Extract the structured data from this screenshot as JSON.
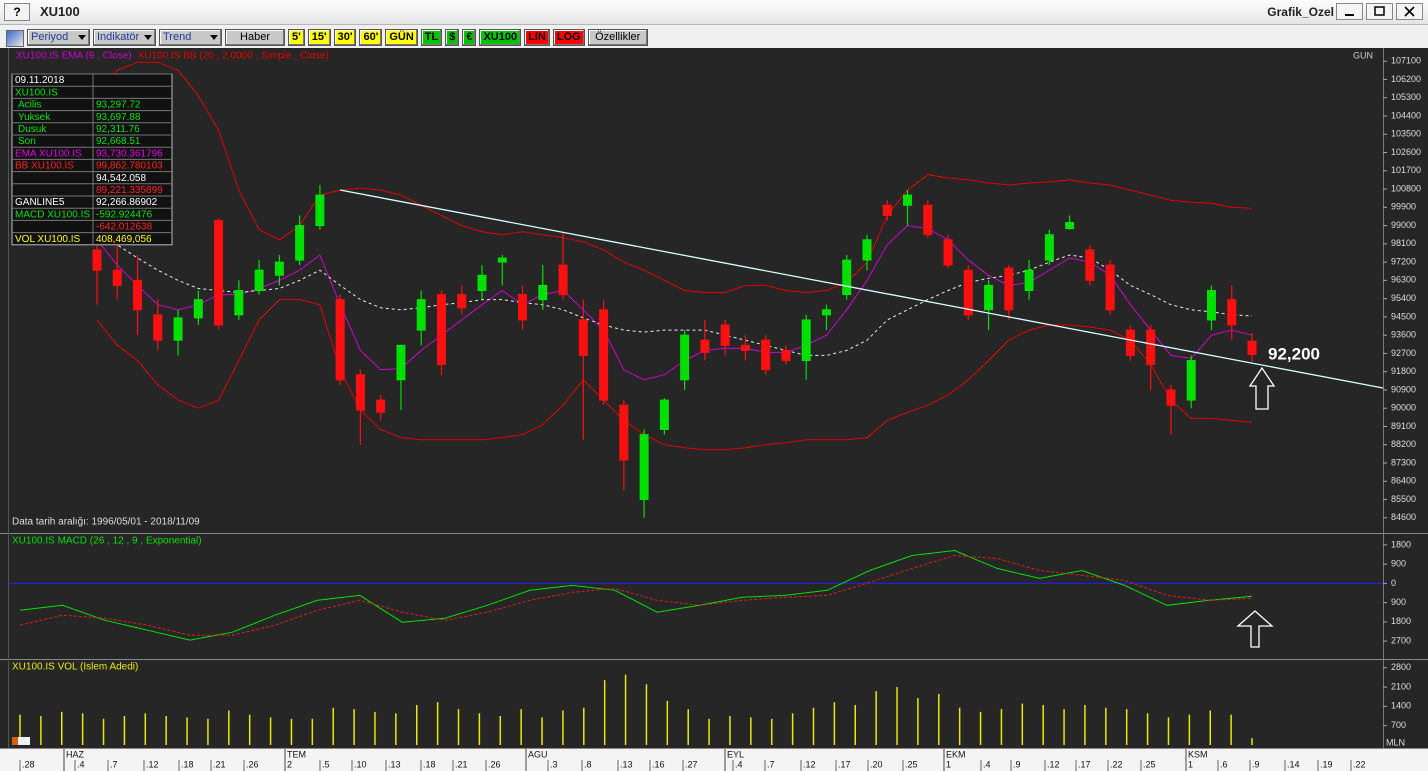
{
  "window": {
    "help": "?",
    "title": "XU100",
    "name": "Grafik_Ozel"
  },
  "toolbar": [
    {
      "label": "Periyod",
      "bg": "#c8c8c8",
      "menu": true
    },
    {
      "label": "Indikatör",
      "bg": "#c8c8c8",
      "menu": true
    },
    {
      "label": "Trend",
      "bg": "#c8c8c8",
      "menu": true
    },
    {
      "label": "Haber",
      "bg": "#c8c8c8",
      "menu": false
    },
    {
      "label": "5'",
      "bg": "#ffff00",
      "menu": false
    },
    {
      "label": "15'",
      "bg": "#ffff00",
      "menu": false
    },
    {
      "label": "30'",
      "bg": "#ffff00",
      "menu": false
    },
    {
      "label": "60'",
      "bg": "#ffff00",
      "menu": false
    },
    {
      "label": "GÜN",
      "bg": "#ffff00",
      "menu": false
    },
    {
      "label": "TL",
      "bg": "#00c400",
      "menu": false
    },
    {
      "label": "$",
      "bg": "#00c400",
      "menu": false
    },
    {
      "label": "€",
      "bg": "#00c400",
      "menu": false
    },
    {
      "label": "XU100",
      "bg": "#00c400",
      "menu": false
    },
    {
      "label": "LIN",
      "bg": "#ff0000",
      "menu": false
    },
    {
      "label": "LOG",
      "bg": "#ff0000",
      "menu": false
    },
    {
      "label": "Özellikler",
      "bg": "#c8c8c8",
      "menu": false
    }
  ],
  "chart_data": [
    {
      "type": "candlestick",
      "legend": [
        {
          "text": "XU100.IS EMA (9 , Close)",
          "color": "#d000d0"
        },
        {
          "text": "XU100.IS BB (20 , 2.0000 , Simple , Close)",
          "color": "#e00000"
        }
      ],
      "period": "GUN",
      "date_range": "Data tarih aralığı: 1996/05/01 - 2018/11/09",
      "annotation": "92,200",
      "ylim": [
        83900,
        107750
      ],
      "yticks": [
        107100,
        106200,
        105300,
        104400,
        103500,
        102600,
        101700,
        100800,
        99900,
        99000,
        98100,
        97200,
        96300,
        95400,
        94500,
        93600,
        92700,
        91800,
        90900,
        90000,
        89100,
        88200,
        87300,
        86400,
        85500,
        84600
      ],
      "up_color": "#00e000",
      "down_color": "#ff1010",
      "open": [
        97800,
        96800,
        96300,
        94600,
        93350,
        94450,
        99250,
        94600,
        95800,
        96550,
        97300,
        99000,
        95350,
        91650,
        90400,
        91400,
        93850,
        95600,
        95600,
        95800,
        97200,
        95600,
        95350,
        97050,
        94350,
        94850,
        90150,
        85500,
        88950,
        91400,
        93350,
        94100,
        93100,
        93350,
        92850,
        92350,
        94600,
        95600,
        97300,
        100000,
        100000,
        100000,
        98300,
        96800,
        94850,
        96900,
        95800,
        97300,
        98850,
        97800,
        97050,
        93850,
        93850,
        90900,
        90400,
        94350,
        95350,
        93300
      ],
      "high": [
        98800,
        98800,
        97550,
        95350,
        94850,
        95800,
        99350,
        96300,
        97300,
        97550,
        99500,
        101000,
        95600,
        91900,
        90650,
        93100,
        95800,
        95800,
        96050,
        97050,
        97550,
        96050,
        97050,
        98700,
        95350,
        95350,
        90400,
        88950,
        90500,
        93850,
        94350,
        94350,
        93600,
        93600,
        93100,
        94600,
        95100,
        97550,
        98550,
        100250,
        100750,
        100250,
        98550,
        97050,
        96300,
        97050,
        97300,
        98800,
        99500,
        98050,
        97300,
        94100,
        94100,
        91150,
        92600,
        96050,
        96050,
        93700
      ],
      "low": [
        95100,
        95350,
        93600,
        92850,
        92600,
        94100,
        93850,
        94350,
        95600,
        96050,
        97050,
        98800,
        91150,
        88200,
        89400,
        89900,
        93100,
        91650,
        94600,
        95350,
        96050,
        93850,
        94850,
        95350,
        88450,
        90150,
        85950,
        84600,
        88700,
        90900,
        92350,
        92600,
        92350,
        91650,
        92150,
        91400,
        93850,
        95350,
        96800,
        99250,
        99000,
        98400,
        96900,
        94350,
        93850,
        94350,
        95350,
        97050,
        98800,
        96050,
        94600,
        92350,
        90900,
        88700,
        90000,
        93850,
        93350,
        92300
      ],
      "close": [
        96800,
        96050,
        94850,
        93350,
        94450,
        95350,
        94100,
        95800,
        96800,
        97200,
        99000,
        100500,
        91400,
        89900,
        89800,
        93100,
        95350,
        92150,
        94950,
        96550,
        97400,
        94350,
        96050,
        95600,
        92600,
        90400,
        87450,
        88700,
        90400,
        93600,
        92750,
        93100,
        92850,
        91900,
        92350,
        94350,
        94850,
        97300,
        98300,
        99500,
        100500,
        98550,
        97050,
        94600,
        96050,
        94850,
        96800,
        98550,
        99150,
        96300,
        94850,
        92600,
        92150,
        90150,
        92350,
        95800,
        94100,
        92650
      ],
      "overlays": [
        {
          "color": "#e00000",
          "dashed": false,
          "values": [
            105650,
            106650,
            107050,
            107050,
            106650,
            105400,
            103700,
            100750,
            98800,
            98300,
            99000,
            100500,
            100750,
            100850,
            100750,
            100500,
            100000,
            99500,
            99000,
            98700,
            98550,
            98700,
            98550,
            98400,
            98200,
            97800,
            97200,
            96800,
            96300,
            95800,
            95700,
            95700,
            96050,
            96050,
            95800,
            95700,
            95800,
            96200,
            97200,
            99500,
            100750,
            101500,
            101350,
            101250,
            101100,
            101000,
            101100,
            101150,
            101250,
            101100,
            101000,
            100750,
            100500,
            100250,
            100150,
            100100,
            99900,
            99850
          ]
        },
        {
          "color": "#e00000",
          "dashed": false,
          "values": [
            94350,
            93100,
            92350,
            91150,
            90400,
            90000,
            90400,
            92350,
            94350,
            95350,
            95350,
            95100,
            91900,
            89900,
            88950,
            88550,
            88450,
            88450,
            88450,
            88450,
            88550,
            88700,
            89200,
            90150,
            91400,
            90400,
            89400,
            88700,
            88200,
            88050,
            87950,
            87950,
            88050,
            88200,
            88300,
            88450,
            88450,
            88450,
            88550,
            89400,
            89800,
            90150,
            90650,
            91400,
            92350,
            93350,
            93850,
            94100,
            94100,
            94000,
            93850,
            93350,
            92150,
            90400,
            89500,
            89500,
            89400,
            89300
          ]
        },
        {
          "color": "#d000d0",
          "dashed": false,
          "values": [
            98300,
            97050,
            96050,
            95100,
            94850,
            95100,
            95600,
            95600,
            95900,
            96300,
            96800,
            97550,
            95100,
            92850,
            91900,
            91950,
            92850,
            93600,
            94350,
            95100,
            95800,
            95100,
            95600,
            95800,
            94850,
            93850,
            91900,
            91400,
            91650,
            92350,
            92850,
            92950,
            92950,
            92750,
            92750,
            93100,
            93600,
            94850,
            96300,
            98050,
            99000,
            98850,
            98300,
            97300,
            96550,
            96050,
            96200,
            96800,
            97400,
            97200,
            96550,
            95100,
            93850,
            92600,
            92450,
            93600,
            93850,
            93600
          ]
        },
        {
          "color": "#e8f0e8",
          "dashed": true,
          "values": [
            98550,
            98050,
            97400,
            96800,
            96300,
            95900,
            95800,
            95700,
            95800,
            95900,
            96300,
            96800,
            96050,
            95350,
            94950,
            94850,
            94950,
            95100,
            95200,
            95350,
            95350,
            95200,
            95100,
            94850,
            94450,
            94100,
            93850,
            93750,
            93850,
            93850,
            93850,
            93600,
            93350,
            93100,
            92850,
            92600,
            92600,
            92850,
            93350,
            94350,
            94850,
            95350,
            95800,
            96200,
            96400,
            96550,
            96800,
            97200,
            97550,
            97400,
            96800,
            96050,
            95600,
            95100,
            94850,
            94750,
            94600,
            94550
          ]
        }
      ],
      "info": [
        {
          "label": "09.11.2018",
          "color": "#ffffff"
        },
        {
          "label": "XU100.IS",
          "color": "#00e000"
        },
        {
          "label": "Acilis",
          "value": "93,297.72",
          "color": "#00e000"
        },
        {
          "label": "Yuksek",
          "value": "93,697.88",
          "color": "#00e000"
        },
        {
          "label": "Dusuk",
          "value": "92,311.76",
          "color": "#00e000"
        },
        {
          "label": "Son",
          "value": "92,668.51",
          "color": "#00e000"
        },
        {
          "label": "EMA XU100.IS",
          "value": "93,730.361796",
          "color": "#e000e0"
        },
        {
          "label": "BB XU100.IS",
          "value": "99,862.780103",
          "color": "#ff2020"
        },
        {
          "value": "94,542.058",
          "color": "#ffffff"
        },
        {
          "value": "89,221.335899",
          "color": "#ff2020"
        },
        {
          "label": "GANLINE5",
          "value": "92,266.86902",
          "color": "#ffffff"
        },
        {
          "label": "MACD XU100.IS",
          "value": "-592.924476",
          "color": "#00e000"
        },
        {
          "value": "-642.012638",
          "color": "#ff2020"
        },
        {
          "label": "VOL XU100.IS",
          "value": "408,469,056",
          "color": "#ffff00"
        }
      ]
    },
    {
      "type": "line",
      "title": "XU100.IS MACD (26 , 12 , 9 , Exponential)",
      "title_color": "#00e000",
      "ylim": [
        -3490,
        2310
      ],
      "yticks": [
        1800,
        900,
        0,
        {
          "value": -900,
          "label": "900"
        },
        {
          "value": -1800,
          "label": "1800"
        },
        {
          "value": -2700,
          "label": "2700"
        }
      ],
      "zero_color": "#2020ff",
      "lines": [
        {
          "color": "#00e000",
          "dashed": false,
          "values": [
            -1260,
            -1025,
            -1725,
            -2190,
            -2655,
            -2285,
            -1490,
            -790,
            -560,
            -1815,
            -1630,
            -1025,
            -325,
            -95,
            -325,
            -1350,
            -1025,
            -650,
            -560,
            -325,
            605,
            1305,
            1540,
            700,
            235,
            605,
            -95,
            -1025,
            -790,
            -605
          ]
        },
        {
          "color": "#e02020",
          "dashed": true,
          "values": [
            -1955,
            -1490,
            -1630,
            -1955,
            -2425,
            -2425,
            -1955,
            -1260,
            -790,
            -1350,
            -1725,
            -1350,
            -790,
            -420,
            -235,
            -790,
            -1025,
            -790,
            -650,
            -560,
            45,
            700,
            1305,
            1165,
            605,
            375,
            140,
            -560,
            -790,
            -700
          ]
        }
      ]
    },
    {
      "type": "bar",
      "title": "XU100.IS VOL (Islem Adedi)",
      "title_color": "#e8e800",
      "color": "#e8e800",
      "unit": "MLN",
      "ylim": [
        0,
        3080
      ],
      "yticks": [
        2800,
        2100,
        1400,
        700
      ],
      "values": [
        1100,
        1050,
        1200,
        1150,
        950,
        1050,
        1150,
        1050,
        1000,
        950,
        1250,
        1100,
        1000,
        950,
        950,
        1350,
        1300,
        1200,
        1150,
        1450,
        1550,
        1300,
        1150,
        1050,
        1300,
        1000,
        1250,
        1350,
        2350,
        2550,
        2200,
        1600,
        1300,
        950,
        1050,
        1000,
        950,
        1150,
        1350,
        1550,
        1450,
        1950,
        2100,
        1700,
        1850,
        1350,
        1200,
        1300,
        1500,
        1450,
        1300,
        1450,
        1350,
        1300,
        1150,
        1000,
        1100,
        1250,
        1100,
        250
      ],
      "x_labels": [
        ".28",
        ".4",
        ".7",
        ".12",
        ".18",
        ".21",
        ".26",
        "2",
        ".5",
        ".10",
        ".13",
        ".18",
        ".21",
        ".26",
        ".3",
        ".8",
        ".13",
        ".16",
        ".27",
        ".4",
        ".7",
        ".12",
        ".17",
        ".20",
        ".25",
        "1",
        ".4",
        ".9",
        ".12",
        ".17",
        ".22",
        ".25",
        "1",
        ".6",
        ".9",
        ".14",
        ".19",
        ".22"
      ],
      "months": [
        "HAZ",
        "TEM",
        "AGU",
        "EYL",
        "EKM",
        "KSM"
      ]
    }
  ]
}
